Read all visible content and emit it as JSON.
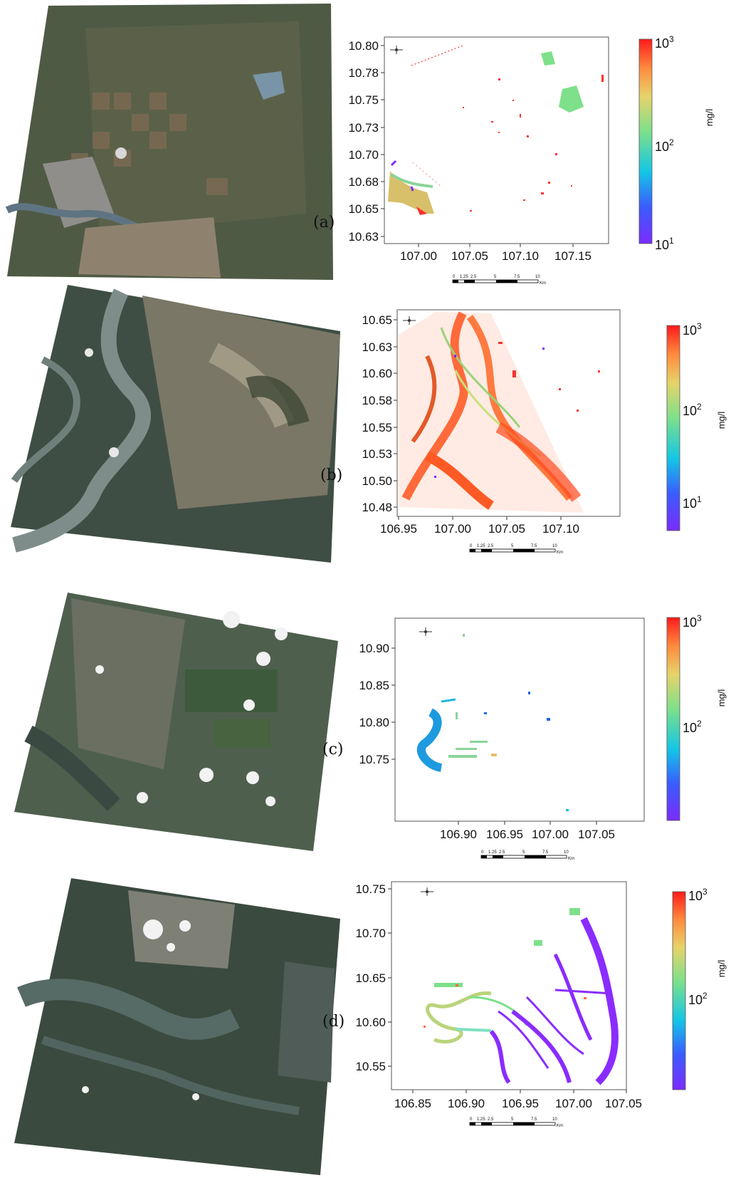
{
  "panels": [
    {
      "label": "(a)",
      "y_ticks": [
        "10.80",
        "10.78",
        "10.75",
        "10.73",
        "10.70",
        "10.68",
        "10.65",
        "10.63"
      ],
      "x_ticks": [
        "107.00",
        "107.05",
        "107.10",
        "107.15"
      ],
      "colorbar": {
        "top": "10",
        "top_exp": "3",
        "mid": "10",
        "mid_exp": "2",
        "bot": "10",
        "bot_exp": "1",
        "unit": "mg/l"
      },
      "scalebar": [
        "0",
        "1.25",
        "2.5",
        "5",
        "7.5",
        "10",
        "Km"
      ]
    },
    {
      "label": "(b)",
      "y_ticks": [
        "10.65",
        "10.63",
        "10.60",
        "10.58",
        "10.55",
        "10.53",
        "10.50",
        "10.48"
      ],
      "x_ticks": [
        "106.95",
        "107.00",
        "107.05",
        "107.10"
      ],
      "colorbar": {
        "top": "10",
        "top_exp": "3",
        "mid": "10",
        "mid_exp": "2",
        "bot": "10",
        "bot_exp": "1",
        "unit": "mg/l"
      },
      "scalebar": [
        "0",
        "1.25",
        "2.5",
        "5",
        "7.5",
        "10",
        "Km"
      ]
    },
    {
      "label": "(c)",
      "y_ticks": [
        "10.90",
        "10.85",
        "10.80",
        "10.75"
      ],
      "x_ticks": [
        "106.90",
        "106.95",
        "107.00",
        "107.05"
      ],
      "colorbar": {
        "top": "10",
        "top_exp": "3",
        "mid": "10",
        "mid_exp": "2",
        "unit": "mg/l"
      },
      "scalebar": [
        "0",
        "1.25",
        "2.5",
        "5",
        "7.5",
        "10",
        "Km"
      ]
    },
    {
      "label": "(d)",
      "y_ticks": [
        "10.75",
        "10.70",
        "10.65",
        "10.60",
        "10.55"
      ],
      "x_ticks": [
        "106.85",
        "106.90",
        "106.95",
        "107.00",
        "107.05"
      ],
      "colorbar": {
        "top": "10",
        "top_exp": "3",
        "mid": "10",
        "mid_exp": "2",
        "unit": "mg/l"
      },
      "scalebar": [
        "0",
        "1.25",
        "2.5",
        "5",
        "7.5",
        "10",
        "Km"
      ]
    }
  ]
}
